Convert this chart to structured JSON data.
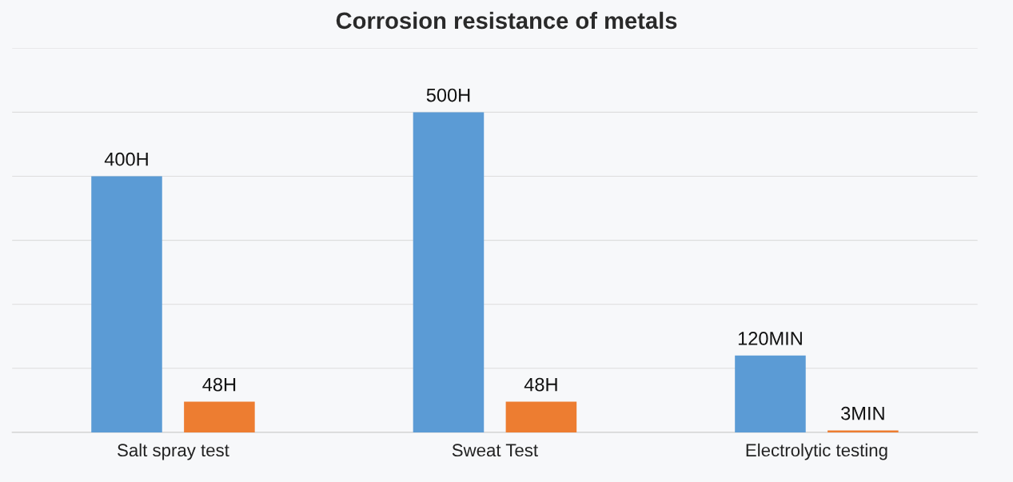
{
  "chart_data": {
    "type": "bar",
    "title": "Corrosion resistance of metals",
    "categories": [
      "Salt spray test",
      "Sweat Test",
      "Electrolytic testing"
    ],
    "series": [
      {
        "color": "#5b9bd5",
        "values": [
          400,
          500,
          120
        ],
        "value_labels": [
          "400H",
          "500H",
          "120MIN"
        ]
      },
      {
        "color": "#ed7d31",
        "values": [
          48,
          48,
          3
        ],
        "value_labels": [
          "48H",
          "48H",
          "3MIN"
        ]
      }
    ],
    "ylim": [
      0,
      600
    ],
    "yticks": [
      {
        "value": 0,
        "label": null
      },
      {
        "value": 100,
        "label": null
      },
      {
        "value": 200,
        "label": null
      },
      {
        "value": 300,
        "label": null
      },
      {
        "value": 400,
        "label": null
      },
      {
        "value": 500,
        "label": null
      },
      {
        "value": 600,
        "label": null
      }
    ],
    "tick_labels": "x",
    "grid": "y",
    "legend": false
  }
}
